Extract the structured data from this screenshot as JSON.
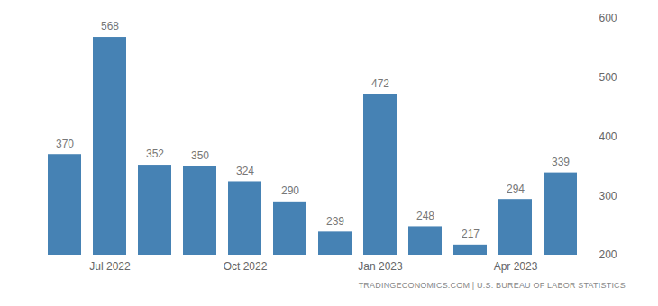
{
  "chart_data": {
    "type": "bar",
    "categories": [
      null,
      "Jul 2022",
      null,
      null,
      "Oct 2022",
      null,
      null,
      "Jan 2023",
      null,
      null,
      "Apr 2023",
      null
    ],
    "values": [
      370,
      568,
      352,
      350,
      324,
      290,
      239,
      472,
      248,
      217,
      294,
      339
    ],
    "color": "#4682b4",
    "ylim": [
      200,
      600
    ],
    "yticks": [
      200,
      300,
      400,
      500,
      600
    ],
    "grid": true,
    "data_labels": true,
    "source": "TRADINGECONOMICS.COM | U.S. BUREAU OF LABOR STATISTICS"
  }
}
